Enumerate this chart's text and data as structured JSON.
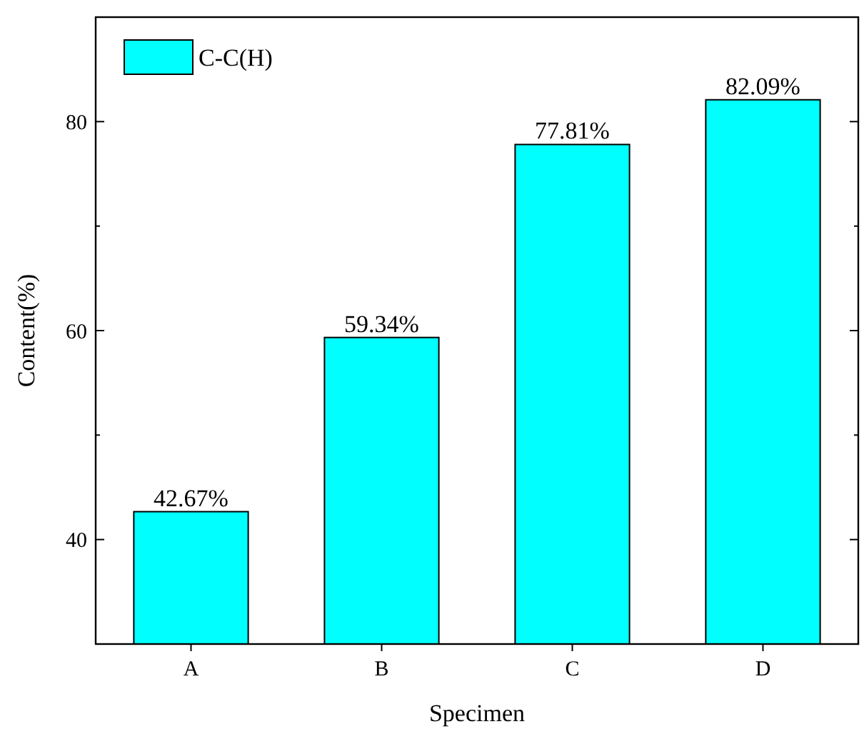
{
  "chart_data": {
    "type": "bar",
    "xlabel": "Specimen",
    "ylabel": "Content(%)",
    "categories": [
      "A",
      "B",
      "C",
      "D"
    ],
    "series": [
      {
        "name": "C-C(H)",
        "color": "#00ffff",
        "values": [
          42.67,
          59.34,
          77.81,
          82.09
        ]
      }
    ],
    "value_labels": [
      "42.67%",
      "59.34%",
      "77.81%",
      "82.09%"
    ],
    "ylim": [
      30,
      90
    ],
    "yticks": [
      40,
      {
        "value": 50,
        "label": null
      },
      60,
      {
        "value": 70,
        "label": null
      },
      80
    ],
    "grid": false,
    "legend": "top left"
  }
}
